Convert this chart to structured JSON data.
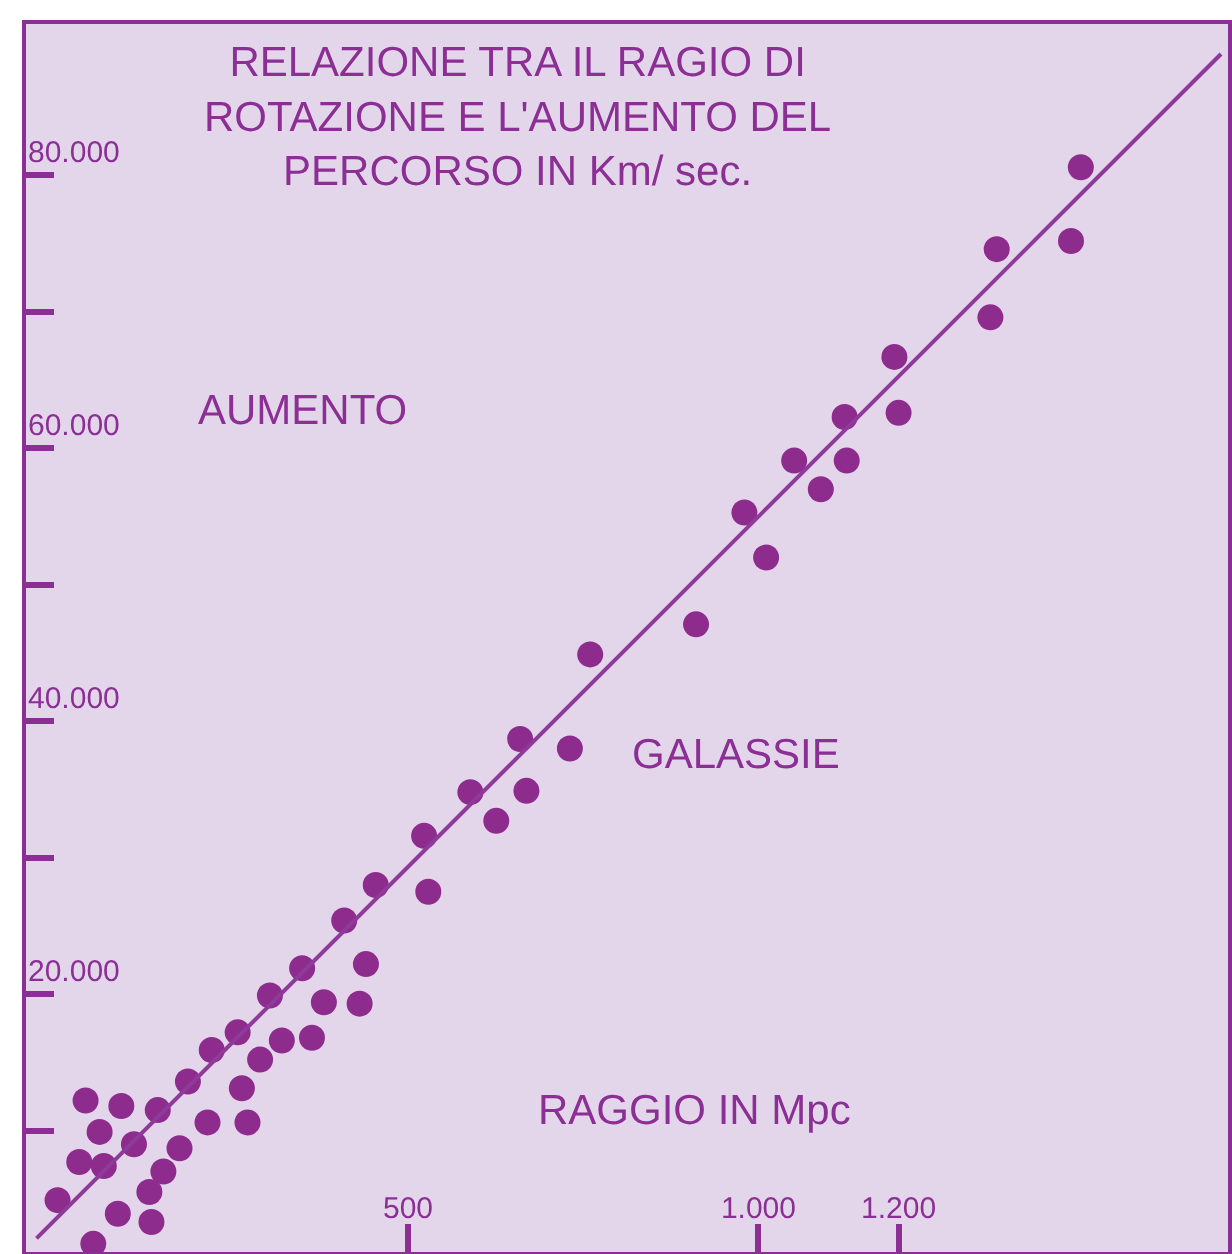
{
  "chart_data": {
    "type": "scatter",
    "title": "RELAZIONE TRA IL RAGIO DI\nROTAZIONE E L'AUMENTO DEL\nPERCORSO IN Km/ sec.",
    "xlabel": "RAGGIO IN Mpc",
    "ylabel": "AUMENTO",
    "annotations": [
      "GALASSIE"
    ],
    "grid": false,
    "xlim": [
      -45,
      1670
    ],
    "ylim": [
      1100,
      91100
    ],
    "xticks": [
      500,
      {
        "value": 1000,
        "label": "1.000"
      },
      {
        "value": 1200,
        "label": "1.200"
      }
    ],
    "yticks": [
      {
        "value": 10000,
        "label": null
      },
      {
        "value": 20000,
        "label": "20.000"
      },
      {
        "value": 30000,
        "label": null
      },
      {
        "value": 40000,
        "label": "40.000"
      },
      {
        "value": 50000,
        "label": null
      },
      {
        "value": 60000,
        "label": "60.000"
      },
      {
        "value": 70000,
        "label": null
      },
      {
        "value": 80000,
        "label": "80.000"
      }
    ],
    "series": [
      {
        "marker": "circle",
        "color": "#8e2c8e",
        "x": [
          1460,
          1340,
          1446,
          1331,
          1194,
          1200,
          1123,
          1051,
          1126,
          1089,
          980,
          1011,
          911,
          760,
          660,
          731,
          589,
          669,
          626,
          523,
          529,
          454,
          409,
          349,
          440,
          303,
          380,
          431,
          257,
          320,
          363,
          220,
          289,
          186,
          263,
          214,
          271,
          40,
          91,
          143,
          60,
          109,
          174,
          31,
          66,
          151,
          131,
          0,
          86,
          134,
          51
        ],
        "values": [
          80600,
          74600,
          75200,
          69600,
          66700,
          62600,
          62300,
          59100,
          59100,
          57000,
          55300,
          52000,
          47100,
          44900,
          38700,
          38000,
          34800,
          34900,
          32700,
          31600,
          27500,
          28000,
          25400,
          21900,
          22200,
          19900,
          19400,
          19300,
          17200,
          16600,
          16800,
          15900,
          15200,
          13600,
          13100,
          10600,
          10600,
          12200,
          11800,
          11500,
          9900,
          9000,
          8700,
          7700,
          7400,
          7000,
          5500,
          4900,
          3900,
          3300,
          1700
        ]
      },
      {
        "type": "line",
        "color": "#8e3a9a",
        "x": [
          -30,
          1660
        ],
        "values": [
          2100,
          88900
        ]
      }
    ]
  }
}
